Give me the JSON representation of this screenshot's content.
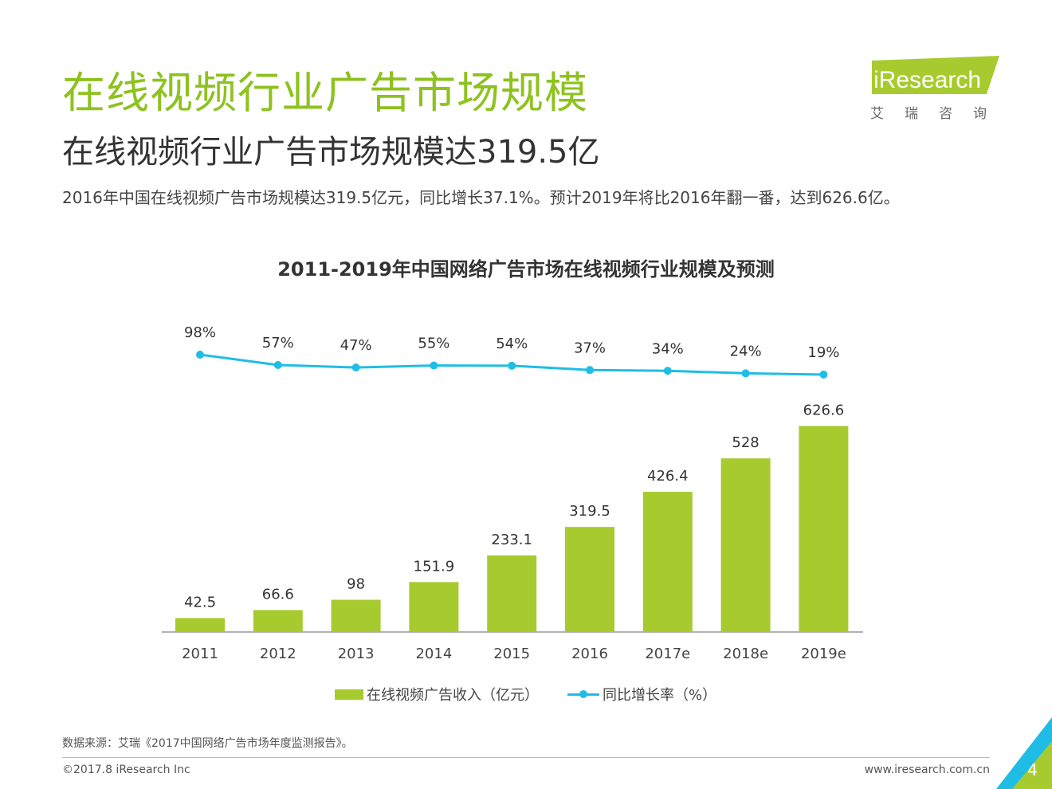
{
  "header": {
    "title": "在线视频行业广告市场规模",
    "subtitle": "在线视频行业广告市场规模达319.5亿",
    "description": "2016年中国在线视频广告市场规模达319.5亿元，同比增长37.1%。预计2019年将比2016年翻一番，达到626.6亿。"
  },
  "logo": {
    "brand": "iResearch",
    "cn": "艾瑞咨询"
  },
  "chart_data": {
    "type": "bar",
    "title": "2011-2019年中国网络广告市场在线视频行业规模及预测",
    "categories": [
      "2011",
      "2012",
      "2013",
      "2014",
      "2015",
      "2016",
      "2017e",
      "2018e",
      "2019e"
    ],
    "series": [
      {
        "name": "在线视频广告收入（亿元）",
        "type": "bar",
        "values": [
          42.5,
          66.6,
          98,
          151.9,
          233.1,
          319.5,
          426.4,
          528,
          626.6
        ],
        "labels": [
          "42.5",
          "66.6",
          "98",
          "151.9",
          "233.1",
          "319.5",
          "426.4",
          "528",
          "626.6"
        ]
      },
      {
        "name": "同比增长率（%）",
        "type": "line",
        "values": [
          98,
          57,
          47,
          55,
          54,
          37,
          34,
          24,
          19
        ],
        "labels": [
          "98%",
          "57%",
          "47%",
          "55%",
          "54%",
          "37%",
          "34%",
          "24%",
          "19%"
        ]
      }
    ],
    "ylim": [
      0,
      700
    ],
    "colors": {
      "bar": "#a7cb2e",
      "line": "#1fbde6"
    }
  },
  "colors": {
    "accent": "#8dc21f",
    "text": "#333333"
  },
  "footer": {
    "source": "数据来源：艾瑞《2017中国网络广告市场年度监测报告》。",
    "copyright": "©2017.8 iResearch Inc",
    "website": "www.iresearch.com.cn",
    "page": "4"
  }
}
